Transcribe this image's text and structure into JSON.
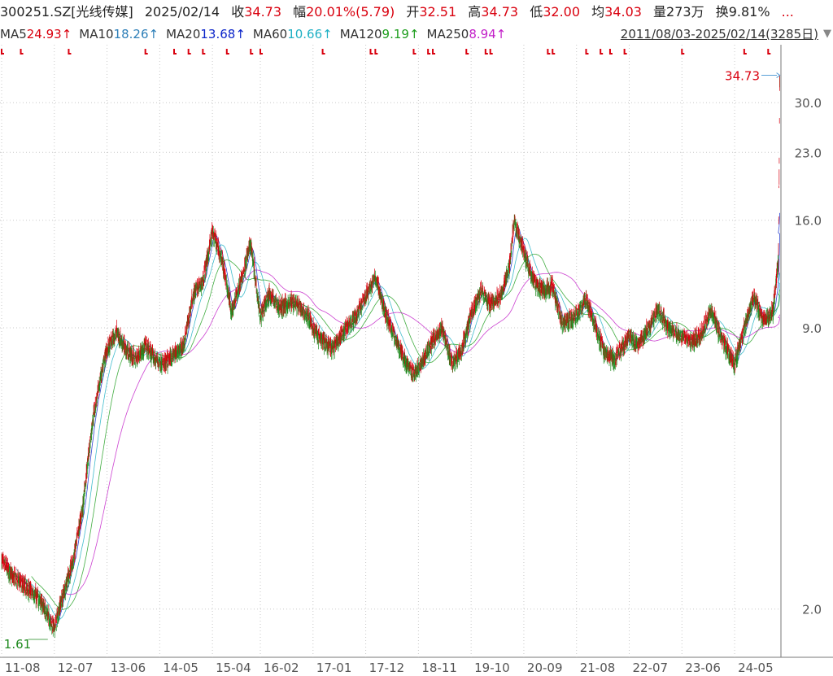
{
  "header": {
    "symbol": "300251.SZ[光线传媒]",
    "date": "2025/02/14",
    "close_label": "收",
    "close": "34.73",
    "change_label": "幅",
    "change": "20.01%(5.79)",
    "open_label": "开",
    "open": "32.51",
    "high_label": "高",
    "high": "34.73",
    "low_label": "低",
    "low": "32.00",
    "avg_label": "均",
    "avg": "34.03",
    "volume_label": "量",
    "volume": "273万",
    "turnover_label": "换",
    "turnover": "9.81%",
    "more": "..."
  },
  "ma_legend": [
    {
      "name": "MA5",
      "value": "24.93↑",
      "color": "#d9000e"
    },
    {
      "name": "MA10",
      "value": "18.26↑",
      "color": "#2e7fb8"
    },
    {
      "name": "MA20",
      "value": "13.68↑",
      "color": "#0b24c9"
    },
    {
      "name": "MA60",
      "value": "10.66↑",
      "color": "#1fb0c4"
    },
    {
      "name": "MA120",
      "value": "9.19↑",
      "color": "#1f9e1f"
    },
    {
      "name": "MA250",
      "value": "8.94↑",
      "color": "#c21fc8"
    }
  ],
  "range": {
    "label": "2011/08/03-2025/02/14(3285日)"
  },
  "colors": {
    "up": "#d9000e",
    "down": "#1f8a1f",
    "grid": "#c8c8c8",
    "axis": "#777777"
  },
  "chart_data": {
    "type": "candlestick",
    "y_scale": "log",
    "ylim": [
      1.6,
      37
    ],
    "y_ticks": [
      "2.0",
      "9.0",
      "16.0",
      "23.0",
      "30.0"
    ],
    "x_ticks": [
      "11-08",
      "12-07",
      "13-06",
      "14-05",
      "15-04",
      "16-02",
      "17-01",
      "17-12",
      "18-11",
      "19-10",
      "20-09",
      "21-08",
      "22-07",
      "23-06",
      "24-05"
    ],
    "x_tick_dates": [
      "2011-08",
      "2012-07",
      "2013-06",
      "2014-05",
      "2015-04",
      "2016-02",
      "2017-01",
      "2017-12",
      "2018-11",
      "2019-10",
      "2020-09",
      "2021-08",
      "2022-07",
      "2023-06",
      "2024-05"
    ],
    "x_range": [
      "2011-08",
      "2025-02"
    ],
    "min_label": {
      "date": "2012-07",
      "value": "1.61"
    },
    "max_label": {
      "date": "2025-02",
      "value": "34.73"
    },
    "close_series": [
      [
        "2011-08",
        2.6
      ],
      [
        "2011-10",
        2.4
      ],
      [
        "2011-12",
        2.3
      ],
      [
        "2012-02",
        2.2
      ],
      [
        "2012-04",
        2.1
      ],
      [
        "2012-06",
        1.9
      ],
      [
        "2012-07",
        1.8
      ],
      [
        "2012-09",
        2.2
      ],
      [
        "2012-11",
        2.6
      ],
      [
        "2013-01",
        3.5
      ],
      [
        "2013-03",
        5.5
      ],
      [
        "2013-05",
        7.2
      ],
      [
        "2013-06",
        8.0
      ],
      [
        "2013-08",
        8.8
      ],
      [
        "2013-10",
        8.0
      ],
      [
        "2013-12",
        7.6
      ],
      [
        "2014-02",
        8.2
      ],
      [
        "2014-04",
        7.6
      ],
      [
        "2014-06",
        7.4
      ],
      [
        "2014-08",
        7.8
      ],
      [
        "2014-10",
        8.2
      ],
      [
        "2014-12",
        10.8
      ],
      [
        "2015-02",
        11.5
      ],
      [
        "2015-04",
        15.0
      ],
      [
        "2015-06",
        13.0
      ],
      [
        "2015-08",
        9.8
      ],
      [
        "2015-10",
        11.6
      ],
      [
        "2015-12",
        14.2
      ],
      [
        "2016-02",
        9.6
      ],
      [
        "2016-04",
        10.8
      ],
      [
        "2016-06",
        10.0
      ],
      [
        "2016-09",
        10.4
      ],
      [
        "2016-12",
        9.5
      ],
      [
        "2017-02",
        8.6
      ],
      [
        "2017-05",
        8.0
      ],
      [
        "2017-08",
        9.0
      ],
      [
        "2017-10",
        9.6
      ],
      [
        "2017-12",
        10.6
      ],
      [
        "2018-02",
        11.8
      ],
      [
        "2018-04",
        9.8
      ],
      [
        "2018-06",
        8.6
      ],
      [
        "2018-08",
        7.6
      ],
      [
        "2018-10",
        7.0
      ],
      [
        "2018-12",
        7.6
      ],
      [
        "2019-02",
        8.4
      ],
      [
        "2019-04",
        9.0
      ],
      [
        "2019-06",
        7.4
      ],
      [
        "2019-08",
        8.0
      ],
      [
        "2019-10",
        9.6
      ],
      [
        "2019-12",
        11.0
      ],
      [
        "2020-02",
        10.2
      ],
      [
        "2020-04",
        10.6
      ],
      [
        "2020-06",
        12.5
      ],
      [
        "2020-07",
        16.0
      ],
      [
        "2020-09",
        13.5
      ],
      [
        "2020-11",
        11.5
      ],
      [
        "2021-01",
        11.0
      ],
      [
        "2021-03",
        11.2
      ],
      [
        "2021-05",
        9.2
      ],
      [
        "2021-08",
        9.6
      ],
      [
        "2021-10",
        10.5
      ],
      [
        "2021-12",
        9.0
      ],
      [
        "2022-02",
        7.8
      ],
      [
        "2022-04",
        7.6
      ],
      [
        "2022-07",
        8.6
      ],
      [
        "2022-09",
        8.2
      ],
      [
        "2022-11",
        9.0
      ],
      [
        "2023-01",
        10.0
      ],
      [
        "2023-03",
        9.0
      ],
      [
        "2023-06",
        8.6
      ],
      [
        "2023-08",
        8.4
      ],
      [
        "2023-10",
        8.6
      ],
      [
        "2023-12",
        10.0
      ],
      [
        "2024-02",
        8.6
      ],
      [
        "2024-04",
        7.8
      ],
      [
        "2024-05",
        7.4
      ],
      [
        "2024-07",
        9.0
      ],
      [
        "2024-09",
        10.6
      ],
      [
        "2024-11",
        9.4
      ],
      [
        "2025-01",
        9.8
      ],
      [
        "2025-02-05",
        13.0
      ],
      [
        "2025-02-10",
        21.0
      ],
      [
        "2025-02-14",
        34.73
      ]
    ],
    "ma_lines": [
      {
        "name": "MA20",
        "color": "#0b24c9"
      },
      {
        "name": "MA60",
        "color": "#1fb0c4"
      },
      {
        "name": "MA120",
        "color": "#1f9e1f"
      },
      {
        "name": "MA250",
        "color": "#c21fc8"
      }
    ],
    "event_markers": [
      "2011-08",
      "2011-12",
      "2012-10",
      "2014-02",
      "2014-08",
      "2014-11",
      "2015-02",
      "2015-07",
      "2015-12",
      "2016-02",
      "2017-03",
      "2018-01",
      "2018-02",
      "2018-10",
      "2019-01",
      "2019-02",
      "2019-09",
      "2020-01",
      "2020-02",
      "2021-02",
      "2021-03",
      "2021-10",
      "2022-01",
      "2022-03",
      "2022-06",
      "2023-06",
      "2024-07",
      "2024-12"
    ]
  }
}
